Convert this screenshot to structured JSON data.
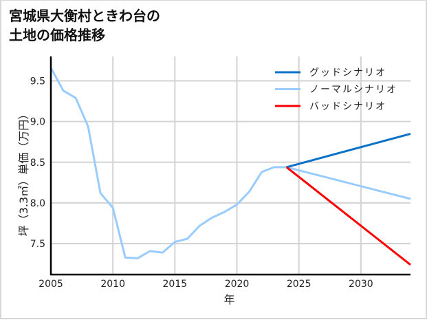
{
  "title": "宮城県大衡村ときわ台の\n土地の価格推移",
  "chart_data": {
    "type": "line",
    "title": "宮城県大衡村ときわ台の土地の価格推移",
    "xlabel": "年",
    "ylabel": "坪（3.3㎡）単価（万円）",
    "xlim": [
      2005,
      2034
    ],
    "ylim": [
      7.12,
      9.8
    ],
    "xticks": [
      2005,
      2010,
      2015,
      2020,
      2025,
      2030
    ],
    "yticks": [
      7.5,
      8.0,
      8.5,
      9.0,
      9.5
    ],
    "grid": true,
    "legend_position": "upper right",
    "series": [
      {
        "name": "グッドシナリオ",
        "color": "#0a72c6",
        "x": [
          2024,
          2034
        ],
        "values": [
          8.44,
          8.85
        ]
      },
      {
        "name": "ノーマルシナリオ",
        "color": "#99ccff",
        "x": [
          2005,
          2006,
          2007,
          2008,
          2009,
          2010,
          2011,
          2012,
          2013,
          2014,
          2015,
          2016,
          2017,
          2018,
          2019,
          2020,
          2021,
          2022,
          2023,
          2024,
          2034
        ],
        "values": [
          9.66,
          9.38,
          9.29,
          8.94,
          8.12,
          7.94,
          7.33,
          7.32,
          7.41,
          7.39,
          7.52,
          7.56,
          7.72,
          7.82,
          7.89,
          7.98,
          8.14,
          8.38,
          8.44,
          8.44,
          8.05
        ]
      },
      {
        "name": "バッドシナリオ",
        "color": "#ff0000",
        "x": [
          2024,
          2034
        ],
        "values": [
          8.44,
          7.24
        ]
      }
    ]
  }
}
